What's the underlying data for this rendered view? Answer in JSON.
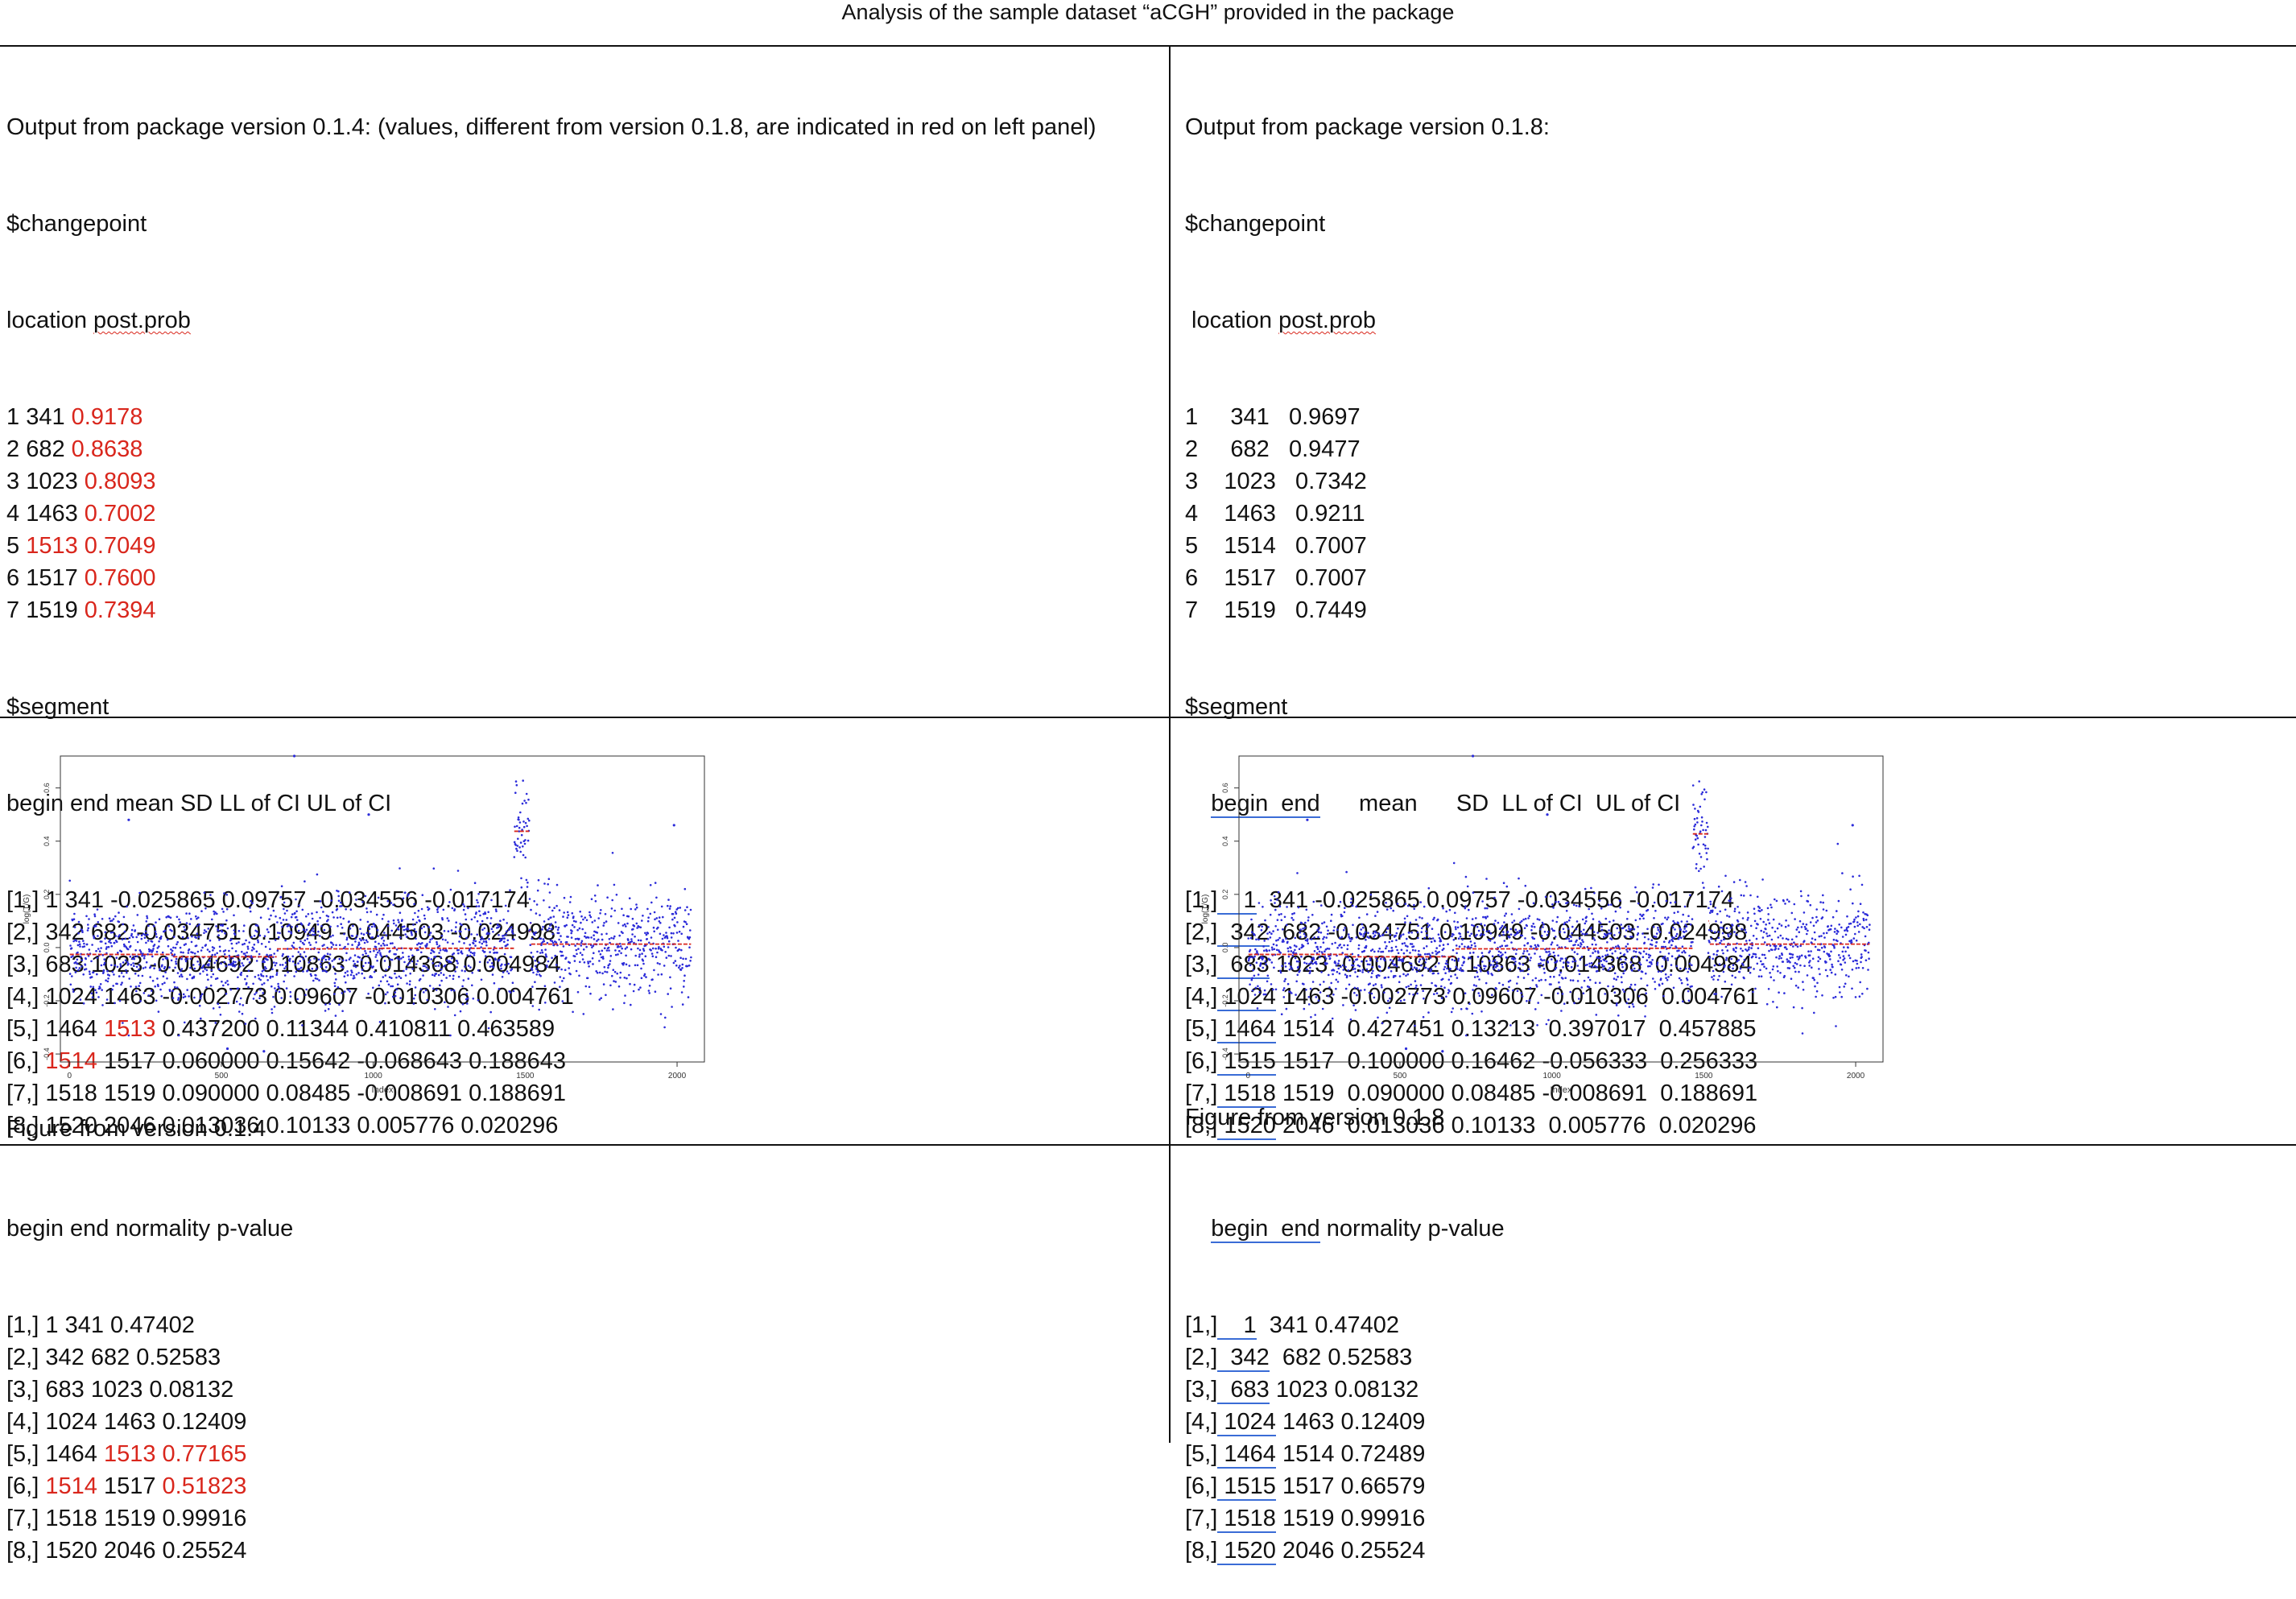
{
  "title": "Analysis of the sample dataset “aCGH” provided in the package",
  "left": {
    "header": "Output from package version 0.1.4: (values, different from version 0.1.8, are indicated in red on left panel)",
    "changepoint_label": "$changepoint",
    "changepoint_cols": "location post.prob",
    "changepoints": [
      {
        "idx": "1",
        "loc": "341",
        "prob": "0.9178",
        "loc_red": false,
        "prob_red": true
      },
      {
        "idx": "2",
        "loc": "682",
        "prob": "0.8638",
        "loc_red": false,
        "prob_red": true
      },
      {
        "idx": "3",
        "loc": "1023",
        "prob": "0.8093",
        "loc_red": false,
        "prob_red": true
      },
      {
        "idx": "4",
        "loc": "1463",
        "prob": "0.7002",
        "loc_red": false,
        "prob_red": true
      },
      {
        "idx": "5",
        "loc": "1513",
        "prob": "0.7049",
        "loc_red": true,
        "prob_red": true
      },
      {
        "idx": "6",
        "loc": "1517",
        "prob": "0.7600",
        "loc_red": false,
        "prob_red": true
      },
      {
        "idx": "7",
        "loc": "1519",
        "prob": "0.7394",
        "loc_red": false,
        "prob_red": true
      }
    ],
    "segment_label": "$segment",
    "segment_cols": "begin end mean SD LL of CI UL of CI",
    "segments": [
      {
        "idx": "[1,]",
        "begin": "1",
        "end": "341",
        "rest": "-0.025865 0.09757 -0.034556 -0.017174",
        "begin_red": false,
        "end_red": false
      },
      {
        "idx": "[2,]",
        "begin": "342",
        "end": "682",
        "rest": "-0.034751 0.10949 -0.044503 -0.024998",
        "begin_red": false,
        "end_red": false
      },
      {
        "idx": "[3,]",
        "begin": "683",
        "end": "1023",
        "rest": "-0.004692 0.10863 -0.014368 0.004984",
        "begin_red": false,
        "end_red": false
      },
      {
        "idx": "[4,]",
        "begin": "1024",
        "end": "1463",
        "rest": "-0.002773 0.09607 -0.010306 0.004761",
        "begin_red": false,
        "end_red": false
      },
      {
        "idx": "[5,]",
        "begin": "1464",
        "end": "1513",
        "rest": "0.437200 0.11344 0.410811 0.463589",
        "begin_red": false,
        "end_red": true
      },
      {
        "idx": "[6,]",
        "begin": "1514",
        "end": "1517",
        "rest": "0.060000 0.15642 -0.068643 0.188643",
        "begin_red": true,
        "end_red": false
      },
      {
        "idx": "[7,]",
        "begin": "1518",
        "end": "1519",
        "rest": "0.090000 0.08485 -0.008691 0.188691",
        "begin_red": false,
        "end_red": false
      },
      {
        "idx": "[8,]",
        "begin": "1520",
        "end": "2046",
        "rest": "0.013036 0.10133 0.005776 0.020296",
        "begin_red": false,
        "end_red": false
      }
    ],
    "figure_caption": "Figure from version 0.1.4",
    "normality_cols": "begin end normality p-value",
    "normality": [
      {
        "idx": "[1,]",
        "begin": "1",
        "end": "341",
        "p": "0.47402",
        "end_red": false,
        "begin_red": false,
        "p_red": false
      },
      {
        "idx": "[2,]",
        "begin": "342",
        "end": "682",
        "p": "0.52583",
        "end_red": false,
        "begin_red": false,
        "p_red": false
      },
      {
        "idx": "[3,]",
        "begin": "683",
        "end": "1023",
        "p": "0.08132",
        "end_red": false,
        "begin_red": false,
        "p_red": false
      },
      {
        "idx": "[4,]",
        "begin": "1024",
        "end": "1463",
        "p": "0.12409",
        "end_red": false,
        "begin_red": false,
        "p_red": false
      },
      {
        "idx": "[5,]",
        "begin": "1464",
        "end": "1513",
        "p": "0.77165",
        "end_red": true,
        "begin_red": false,
        "p_red": true
      },
      {
        "idx": "[6,]",
        "begin": "1514",
        "end": "1517",
        "p": "0.51823",
        "end_red": false,
        "begin_red": true,
        "p_red": true
      },
      {
        "idx": "[7,]",
        "begin": "1518",
        "end": "1519",
        "p": "0.99916",
        "end_red": false,
        "begin_red": false,
        "p_red": false
      },
      {
        "idx": "[8,]",
        "begin": "1520",
        "end": "2046",
        "p": "0.25524",
        "end_red": false,
        "begin_red": false,
        "p_red": false
      }
    ]
  },
  "right": {
    "header": "Output from package version 0.1.8:",
    "changepoint_label": "$changepoint",
    "changepoint_cols": " location post.prob",
    "changepoints": [
      {
        "idx": "1",
        "loc": "341",
        "prob": "0.9697"
      },
      {
        "idx": "2",
        "loc": "682",
        "prob": "0.9477"
      },
      {
        "idx": "3",
        "loc": "1023",
        "prob": "0.7342"
      },
      {
        "idx": "4",
        "loc": "1463",
        "prob": "0.9211"
      },
      {
        "idx": "5",
        "loc": "1514",
        "prob": "0.7007"
      },
      {
        "idx": "6",
        "loc": "1517",
        "prob": "0.7007"
      },
      {
        "idx": "7",
        "loc": "1519",
        "prob": "0.7449"
      }
    ],
    "segment_label": "$segment",
    "segment_cols": "    begin  end      mean      SD  LL of CI  UL of CI",
    "segments": [
      {
        "idx": "[1,]",
        "begin": "1",
        "end": "341",
        "rest": "-0.025865 0.09757 -0.034556 -0.017174"
      },
      {
        "idx": "[2,]",
        "begin": "342",
        "end": "682",
        "rest": "-0.034751 0.10949 -0.044503 -0.024998"
      },
      {
        "idx": "[3,]",
        "begin": "683",
        "end": "1023",
        "rest": "-0.004692 0.10863 -0.014368  0.004984"
      },
      {
        "idx": "[4,]",
        "begin": "1024",
        "end": "1463",
        "rest": "-0.002773 0.09607 -0.010306  0.004761"
      },
      {
        "idx": "[5,]",
        "begin": "1464",
        "end": "1514",
        "rest": " 0.427451 0.13213  0.397017  0.457885"
      },
      {
        "idx": "[6,]",
        "begin": "1515",
        "end": "1517",
        "rest": " 0.100000 0.16462 -0.056333  0.256333"
      },
      {
        "idx": "[7,]",
        "begin": "1518",
        "end": "1519",
        "rest": " 0.090000 0.08485 -0.008691  0.188691"
      },
      {
        "idx": "[8,]",
        "begin": "1520",
        "end": "2046",
        "rest": " 0.013036 0.10133  0.005776  0.020296"
      }
    ],
    "figure_caption": "Figure from version 0.1.8",
    "normality_cols": "    begin  end normality p-value",
    "normality": [
      {
        "idx": "[1,]",
        "begin": "1",
        "end": "341",
        "p": "0.47402"
      },
      {
        "idx": "[2,]",
        "begin": "342",
        "end": "682",
        "p": "0.52583"
      },
      {
        "idx": "[3,]",
        "begin": "683",
        "end": "1023",
        "p": "0.08132"
      },
      {
        "idx": "[4,]",
        "begin": "1024",
        "end": "1463",
        "p": "0.12409"
      },
      {
        "idx": "[5,]",
        "begin": "1464",
        "end": "1514",
        "p": "0.72489"
      },
      {
        "idx": "[6,]",
        "begin": "1515",
        "end": "1517",
        "p": "0.66579"
      },
      {
        "idx": "[7,]",
        "begin": "1518",
        "end": "1519",
        "p": "0.99916"
      },
      {
        "idx": "[8,]",
        "begin": "1520",
        "end": "2046",
        "p": "0.25524"
      }
    ]
  },
  "chart_data": [
    {
      "type": "scatter",
      "version": "0.1.4",
      "xlabel": "Index",
      "ylabel": "log(T/G)",
      "xlim": [
        0,
        2046
      ],
      "ylim": [
        -0.4,
        0.7
      ],
      "xticks": [
        "0",
        "500",
        "1000",
        "1500",
        "2000"
      ],
      "yticks": [
        "-0.4",
        "-0.2",
        "0.0",
        "0.2",
        "0.4",
        "0.6"
      ],
      "point_color": "#2b2bd9",
      "segment_color": "#d9261c",
      "segments": [
        {
          "begin": 1,
          "end": 341,
          "mean": -0.025865
        },
        {
          "begin": 342,
          "end": 682,
          "mean": -0.034751
        },
        {
          "begin": 683,
          "end": 1023,
          "mean": -0.004692
        },
        {
          "begin": 1024,
          "end": 1463,
          "mean": -0.002773
        },
        {
          "begin": 1464,
          "end": 1513,
          "mean": 0.4372
        },
        {
          "begin": 1514,
          "end": 1517,
          "mean": 0.06
        },
        {
          "begin": 1518,
          "end": 1519,
          "mean": 0.09
        },
        {
          "begin": 1520,
          "end": 2046,
          "mean": 0.013036
        }
      ],
      "outliers": [
        [
          740,
          0.72
        ],
        [
          195,
          0.48
        ],
        [
          985,
          0.5
        ],
        [
          1990,
          0.46
        ],
        [
          520,
          -0.38
        ],
        [
          640,
          -0.39
        ]
      ]
    },
    {
      "type": "scatter",
      "version": "0.1.8",
      "xlabel": "Index",
      "ylabel": "log(T/G)",
      "xlim": [
        0,
        2046
      ],
      "ylim": [
        -0.4,
        0.7
      ],
      "xticks": [
        "0",
        "500",
        "1000",
        "1500",
        "2000"
      ],
      "yticks": [
        "-0.4",
        "-0.2",
        "0.0",
        "0.2",
        "0.4",
        "0.6"
      ],
      "point_color": "#2b2bd9",
      "segment_color": "#d9261c",
      "segments": [
        {
          "begin": 1,
          "end": 341,
          "mean": -0.025865
        },
        {
          "begin": 342,
          "end": 682,
          "mean": -0.034751
        },
        {
          "begin": 683,
          "end": 1023,
          "mean": -0.004692
        },
        {
          "begin": 1024,
          "end": 1463,
          "mean": -0.002773
        },
        {
          "begin": 1464,
          "end": 1514,
          "mean": 0.427451
        },
        {
          "begin": 1515,
          "end": 1517,
          "mean": 0.1
        },
        {
          "begin": 1518,
          "end": 1519,
          "mean": 0.09
        },
        {
          "begin": 1520,
          "end": 2046,
          "mean": 0.013036
        }
      ],
      "outliers": [
        [
          740,
          0.72
        ],
        [
          195,
          0.48
        ],
        [
          985,
          0.5
        ],
        [
          1990,
          0.46
        ],
        [
          520,
          -0.38
        ],
        [
          640,
          -0.39
        ]
      ]
    }
  ]
}
